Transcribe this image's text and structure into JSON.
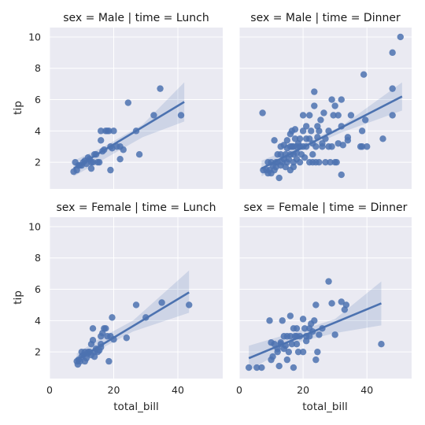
{
  "chart_data": {
    "type": "scatter",
    "x_label": "total_bill",
    "y_label": "tip",
    "xlim": [
      0,
      54
    ],
    "ylim": [
      0.3,
      10.6
    ],
    "x_ticks": [
      0,
      20,
      40
    ],
    "y_ticks": [
      2,
      4,
      6,
      8,
      10
    ],
    "grid": true,
    "color": "#4c72b0",
    "panels": [
      {
        "title": "sex = Male | time = Lunch",
        "fit": {
          "x0": 7.5,
          "y0": 1.6,
          "x1": 42,
          "y1": 5.85
        },
        "ci": {
          "upper": [
            [
              7.5,
              2.1
            ],
            [
              17,
              3.0
            ],
            [
              29,
              4.4
            ],
            [
              42,
              7.1
            ]
          ],
          "lower": [
            [
              7.5,
              1.1
            ],
            [
              17,
              2.2
            ],
            [
              29,
              3.6
            ],
            [
              42,
              4.6
            ]
          ]
        },
        "points": [
          [
            7.5,
            1.4
          ],
          [
            8,
            2.0
          ],
          [
            8.5,
            1.5
          ],
          [
            9,
            1.8
          ],
          [
            9.5,
            1.8
          ],
          [
            10,
            1.8
          ],
          [
            10.5,
            2.0
          ],
          [
            11,
            2.1
          ],
          [
            11.5,
            1.9
          ],
          [
            12,
            2.3
          ],
          [
            12.5,
            2.2
          ],
          [
            13,
            2.0
          ],
          [
            13,
            1.6
          ],
          [
            13.5,
            2.0
          ],
          [
            14,
            2.5
          ],
          [
            14.5,
            2.5
          ],
          [
            15,
            2.0
          ],
          [
            15.5,
            2.0
          ],
          [
            16,
            4.0
          ],
          [
            16,
            3.4
          ],
          [
            16.5,
            2.7
          ],
          [
            17,
            2.8
          ],
          [
            17.5,
            4.0
          ],
          [
            18,
            4.0
          ],
          [
            18.5,
            4.0
          ],
          [
            19,
            1.5
          ],
          [
            19,
            3.0
          ],
          [
            19.5,
            2.9
          ],
          [
            20,
            4.0
          ],
          [
            21,
            3.0
          ],
          [
            22,
            2.2
          ],
          [
            22,
            3.0
          ],
          [
            23,
            2.8
          ],
          [
            24.5,
            5.8
          ],
          [
            27,
            4.0
          ],
          [
            28,
            2.5
          ],
          [
            32.5,
            5.0
          ],
          [
            34.5,
            6.7
          ],
          [
            41,
            5.0
          ]
        ]
      },
      {
        "title": "sex = Male | time = Dinner",
        "fit": {
          "x0": 7,
          "y0": 1.6,
          "x1": 51,
          "y1": 6.2
        },
        "ci": {
          "upper": [
            [
              7,
              2.1
            ],
            [
              20,
              3.2
            ],
            [
              32,
              4.3
            ],
            [
              51,
              7.1
            ]
          ],
          "lower": [
            [
              7,
              1.1
            ],
            [
              20,
              2.8
            ],
            [
              32,
              3.9
            ],
            [
              51,
              5.3
            ]
          ]
        },
        "points": [
          [
            7.3,
            5.15
          ],
          [
            7.5,
            1.5
          ],
          [
            8.5,
            1.5
          ],
          [
            9,
            2.0
          ],
          [
            9,
            1.3
          ],
          [
            9.5,
            1.5
          ],
          [
            10,
            2.0
          ],
          [
            10,
            1.3
          ],
          [
            10.5,
            1.8
          ],
          [
            11,
            1.5
          ],
          [
            11,
            3.4
          ],
          [
            11.5,
            2.0
          ],
          [
            11.5,
            1.7
          ],
          [
            12,
            2.0
          ],
          [
            12,
            2.5
          ],
          [
            12.5,
            1.0
          ],
          [
            13,
            1.8
          ],
          [
            13,
            2.5
          ],
          [
            13,
            3.0
          ],
          [
            13.5,
            2.0
          ],
          [
            14,
            2.2
          ],
          [
            14,
            3.1
          ],
          [
            14.5,
            1.7
          ],
          [
            14.5,
            2.5
          ],
          [
            15,
            2.0
          ],
          [
            15,
            2.9
          ],
          [
            15,
            3.4
          ],
          [
            15.5,
            2.2
          ],
          [
            16,
            1.5
          ],
          [
            16,
            2.5
          ],
          [
            16,
            3.0
          ],
          [
            16,
            3.8
          ],
          [
            16.5,
            3.0
          ],
          [
            16.5,
            4.0
          ],
          [
            17,
            1.7
          ],
          [
            17,
            2.0
          ],
          [
            17,
            2.5
          ],
          [
            17,
            3.0
          ],
          [
            17.5,
            3.5
          ],
          [
            17.5,
            4.1
          ],
          [
            18,
            2.2
          ],
          [
            18,
            2.6
          ],
          [
            18,
            3.0
          ],
          [
            18.5,
            3.2
          ],
          [
            19,
            2.0
          ],
          [
            19,
            3.0
          ],
          [
            19,
            3.5
          ],
          [
            19.5,
            2.5
          ],
          [
            20,
            3.0
          ],
          [
            20,
            4.0
          ],
          [
            20,
            5.0
          ],
          [
            20.5,
            2.3
          ],
          [
            21,
            3.5
          ],
          [
            21,
            4.3
          ],
          [
            21,
            3.0
          ],
          [
            22,
            2.0
          ],
          [
            22,
            3.5
          ],
          [
            22,
            5.0
          ],
          [
            22.5,
            4.0
          ],
          [
            23,
            2.5
          ],
          [
            23,
            3.2
          ],
          [
            23,
            2.0
          ],
          [
            23.5,
            5.6
          ],
          [
            23.5,
            6.5
          ],
          [
            24,
            2.0
          ],
          [
            24,
            3.0
          ],
          [
            24.5,
            3.6
          ],
          [
            24.5,
            4.3
          ],
          [
            25,
            4.0
          ],
          [
            25,
            2.0
          ],
          [
            25.5,
            4.7
          ],
          [
            26,
            3.2
          ],
          [
            26,
            3.0
          ],
          [
            26.5,
            5.15
          ],
          [
            27,
            3.5
          ],
          [
            27,
            2.0
          ],
          [
            28,
            4.0
          ],
          [
            28,
            3.0
          ],
          [
            28.5,
            2.0
          ],
          [
            29,
            3.0
          ],
          [
            29,
            6.0
          ],
          [
            29.5,
            5.0
          ],
          [
            30,
            2.0
          ],
          [
            30,
            5.6
          ],
          [
            30.5,
            2.0
          ],
          [
            31,
            5.0
          ],
          [
            31,
            3.2
          ],
          [
            32,
            1.2
          ],
          [
            32,
            4.3
          ],
          [
            32,
            6.0
          ],
          [
            32.5,
            3.1
          ],
          [
            34,
            3.6
          ],
          [
            34,
            3.4
          ],
          [
            35,
            5.0
          ],
          [
            38,
            3.0
          ],
          [
            38.5,
            3.0
          ],
          [
            38.5,
            4.0
          ],
          [
            39,
            7.6
          ],
          [
            39.5,
            4.7
          ],
          [
            40,
            3.0
          ],
          [
            45,
            3.5
          ],
          [
            48,
            9.0
          ],
          [
            48,
            6.7
          ],
          [
            48,
            5.0
          ],
          [
            50.5,
            10.0
          ]
        ]
      },
      {
        "title": "sex = Female | time = Lunch",
        "fit": {
          "x0": 8.5,
          "y0": 1.5,
          "x1": 43.5,
          "y1": 5.8
        },
        "ci": {
          "upper": [
            [
              8.5,
              1.9
            ],
            [
              16,
              2.9
            ],
            [
              26,
              4.0
            ],
            [
              43.5,
              7.2
            ]
          ],
          "lower": [
            [
              8.5,
              1.1
            ],
            [
              16,
              2.2
            ],
            [
              26,
              3.3
            ],
            [
              43.5,
              4.5
            ]
          ]
        },
        "points": [
          [
            8.5,
            1.4
          ],
          [
            8.8,
            1.2
          ],
          [
            9,
            1.5
          ],
          [
            9.5,
            1.4
          ],
          [
            10,
            2.0
          ],
          [
            10,
            1.7
          ],
          [
            10.5,
            1.8
          ],
          [
            11,
            2.0
          ],
          [
            11,
            1.4
          ],
          [
            11.5,
            1.6
          ],
          [
            12,
            2.0
          ],
          [
            12,
            1.9
          ],
          [
            12.5,
            2.0
          ],
          [
            13,
            2.5
          ],
          [
            13,
            1.8
          ],
          [
            13.5,
            3.5
          ],
          [
            13.5,
            2.75
          ],
          [
            14,
            2.0
          ],
          [
            14,
            1.7
          ],
          [
            14.5,
            2.2
          ],
          [
            15,
            2.0
          ],
          [
            15.5,
            2.1
          ],
          [
            16,
            2.5
          ],
          [
            16,
            3.0
          ],
          [
            16,
            2.3
          ],
          [
            16.5,
            3.2
          ],
          [
            17,
            3.5
          ],
          [
            17.5,
            3.5
          ],
          [
            18,
            3.0
          ],
          [
            18.5,
            1.4
          ],
          [
            19,
            3.0
          ],
          [
            19.5,
            4.2
          ],
          [
            20,
            2.8
          ],
          [
            24,
            2.9
          ],
          [
            27,
            5.0
          ],
          [
            30,
            4.2
          ],
          [
            35,
            5.15
          ],
          [
            43.5,
            5.0
          ]
        ]
      },
      {
        "title": "sex = Female | time = Dinner",
        "fit": {
          "x0": 3,
          "y0": 1.6,
          "x1": 44.5,
          "y1": 5.1
        },
        "ci": {
          "upper": [
            [
              3,
              2.4
            ],
            [
              18,
              3.3
            ],
            [
              30,
              4.1
            ],
            [
              44.5,
              6.5
            ]
          ],
          "lower": [
            [
              3,
              0.8
            ],
            [
              18,
              2.6
            ],
            [
              30,
              3.2
            ],
            [
              44.5,
              3.7
            ]
          ]
        },
        "points": [
          [
            3,
            1.0
          ],
          [
            5.5,
            1.0
          ],
          [
            7,
            1.0
          ],
          [
            9.5,
            4.0
          ],
          [
            10,
            2.6
          ],
          [
            10,
            1.5
          ],
          [
            10.5,
            1.7
          ],
          [
            11,
            2.5
          ],
          [
            12,
            2.0
          ],
          [
            12,
            2.2
          ],
          [
            12.5,
            1.1
          ],
          [
            13,
            2.5
          ],
          [
            13,
            2.6
          ],
          [
            13.5,
            4.0
          ],
          [
            14,
            2.2
          ],
          [
            14,
            3.0
          ],
          [
            14.5,
            2.4
          ],
          [
            15,
            1.5
          ],
          [
            15,
            3.0
          ],
          [
            15.5,
            2.0
          ],
          [
            16,
            4.3
          ],
          [
            16,
            3.0
          ],
          [
            16.5,
            2.5
          ],
          [
            17,
            3.5
          ],
          [
            17,
            1.0
          ],
          [
            17.5,
            3.0
          ],
          [
            18,
            3.5
          ],
          [
            18,
            2.5
          ],
          [
            18,
            3.0
          ],
          [
            18.5,
            2.0
          ],
          [
            19,
            3.0
          ],
          [
            20,
            4.1
          ],
          [
            20,
            2.0
          ],
          [
            20.5,
            3.5
          ],
          [
            21,
            3.0
          ],
          [
            21,
            2.7
          ],
          [
            22,
            3.5
          ],
          [
            22,
            3.0
          ],
          [
            22.5,
            3.8
          ],
          [
            23,
            3.3
          ],
          [
            23.5,
            4.0
          ],
          [
            24,
            5.0
          ],
          [
            24,
            1.5
          ],
          [
            24.5,
            2.0
          ],
          [
            25,
            3.1
          ],
          [
            26,
            3.5
          ],
          [
            28,
            6.5
          ],
          [
            29,
            5.1
          ],
          [
            30,
            3.1
          ],
          [
            32,
            5.2
          ],
          [
            33,
            4.7
          ],
          [
            33.5,
            5.0
          ],
          [
            44.5,
            2.5
          ]
        ]
      }
    ]
  }
}
